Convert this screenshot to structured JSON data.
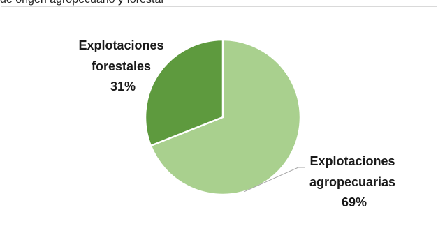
{
  "top_text": "de origen agropecuario y forestal",
  "chart_data": {
    "type": "pie",
    "categories": [
      "Explotaciones agropecuarias",
      "Explotaciones forestales"
    ],
    "values": [
      69,
      31
    ],
    "unit": "%",
    "labels": [
      {
        "lines": [
          "Explotaciones",
          "agropecuarias"
        ],
        "percent": "69%"
      },
      {
        "lines": [
          "Explotaciones",
          "forestales"
        ],
        "percent": "31%"
      }
    ],
    "colors": [
      "#a9d08e",
      "#5e9a3e"
    ],
    "start_angle_deg": 0,
    "direction": "clockwise",
    "title": "",
    "legend": "none"
  }
}
